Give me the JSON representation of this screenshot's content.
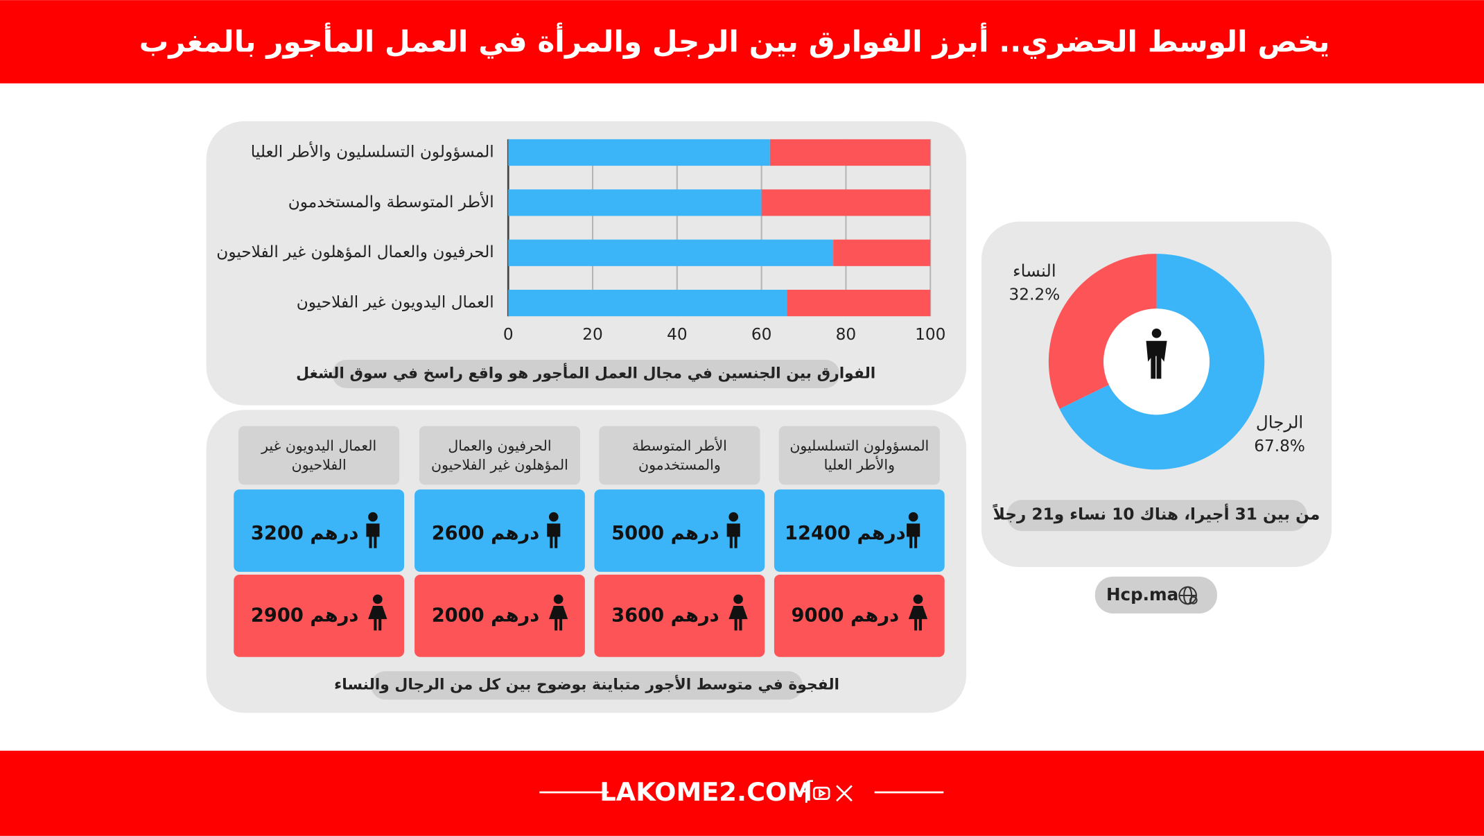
{
  "title": "يخص الوسط الحضري.. أبرز الفوارق بين الرجل والمرأة في العمل المأجور بالمغرب",
  "chart_data": [
    {
      "type": "bar",
      "orientation": "horizontal",
      "stacked": true,
      "categories": [
        "المسؤولون التسلسليون والأطر العليا",
        "الأطر المتوسطة والمستخدمون",
        "الحرفيون والعمال المؤهلون غير الفلاحيون",
        "العمال اليدويون غير الفلاحيون"
      ],
      "series": [
        {
          "color": "#3bb4f8",
          "values": [
            62,
            60,
            77,
            66
          ]
        },
        {
          "color": "#fd5557",
          "values": [
            38,
            40,
            23,
            34
          ]
        }
      ],
      "xlim": [
        0,
        100
      ],
      "xticks": [
        0,
        20,
        40,
        60,
        80,
        100
      ],
      "grid": true,
      "note": "الفوارق بين الجنسين في مجال العمل المأجور هو واقع راسخ في سوق الشغل"
    },
    {
      "type": "pie",
      "donut": true,
      "categories": [
        "النساء",
        "الرجال"
      ],
      "values": [
        32.2,
        67.8
      ],
      "value_labels": [
        "32.2%",
        "67.8%"
      ],
      "colors": [
        "#fd5557",
        "#3bb4f8"
      ],
      "note": "من بين 31 أجيرا، هناك 10 نساء و21 رجلاً"
    }
  ],
  "wages": {
    "columns": [
      "المسؤولون التسلسليون والأطر العليا",
      "الأطر المتوسطة والمستخدمون",
      "الحرفيون والعمال المؤهلون غير الفلاحيون",
      "العمال اليدويون غير الفلاحيون"
    ],
    "men": [
      "12400 درهم",
      "5000 درهم",
      "2600 درهم",
      "3200 درهم"
    ],
    "women": [
      "9000 درهم",
      "3600 درهم",
      "2000 درهم",
      "2900 درهم"
    ],
    "note": "الفجوة في متوسط الأجور متباينة بوضوح بين كل من الرجال والنساء"
  },
  "source": "Hcp.ma",
  "footer": "LAKOME2.COM"
}
